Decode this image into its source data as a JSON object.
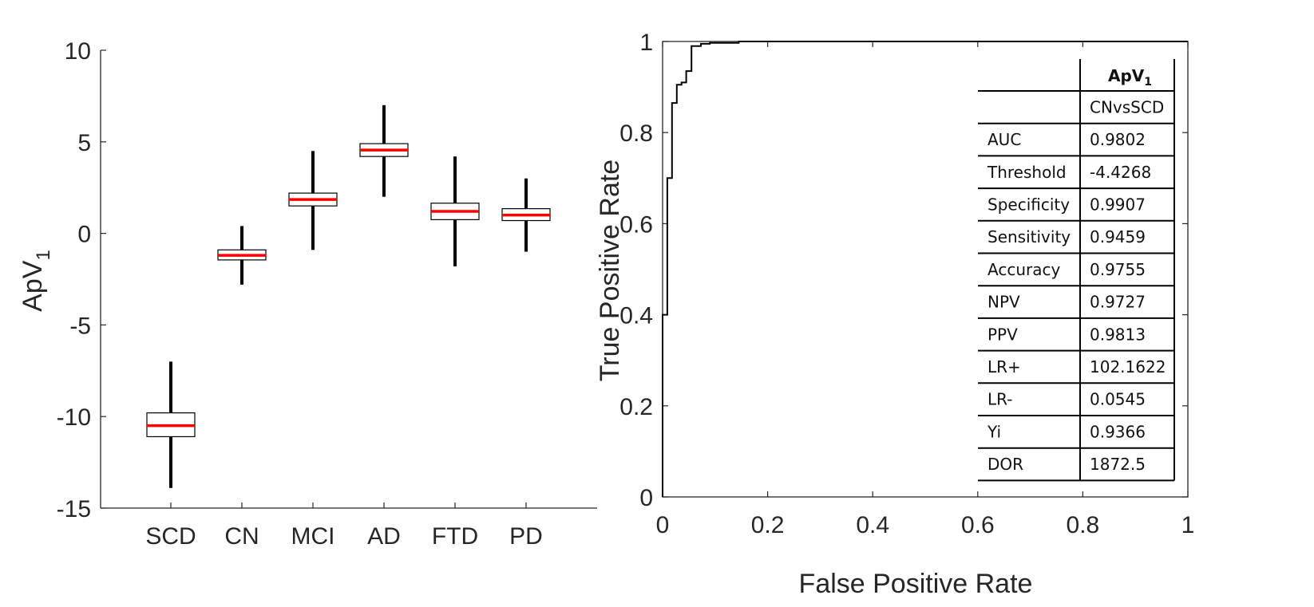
{
  "chart_data": [
    {
      "type": "box",
      "ylabel": "ApV",
      "ylabel_subscript": "1",
      "ylim": [
        -15,
        10
      ],
      "yticks": [
        "10",
        "5",
        "0",
        "-5",
        "-10",
        "-15"
      ],
      "ytick_values": [
        10,
        5,
        0,
        -5,
        -10,
        -15
      ],
      "grid": false,
      "median_color": "#ff0000",
      "categories": [
        "SCD",
        "CN",
        "MCI",
        "AD",
        "FTD",
        "PD"
      ],
      "boxes": [
        {
          "category": "SCD",
          "whisker_low": -13.9,
          "q1": -11.1,
          "median": -10.5,
          "q3": -9.8,
          "whisker_high": -7.0
        },
        {
          "category": "CN",
          "whisker_low": -2.8,
          "q1": -1.45,
          "median": -1.2,
          "q3": -0.9,
          "whisker_high": 0.4
        },
        {
          "category": "MCI",
          "whisker_low": -0.9,
          "q1": 1.5,
          "median": 1.85,
          "q3": 2.2,
          "whisker_high": 4.5
        },
        {
          "category": "AD",
          "whisker_low": 2.0,
          "q1": 4.2,
          "median": 4.55,
          "q3": 4.9,
          "whisker_high": 7.0
        },
        {
          "category": "FTD",
          "whisker_low": -1.8,
          "q1": 0.75,
          "median": 1.2,
          "q3": 1.65,
          "whisker_high": 4.2
        },
        {
          "category": "PD",
          "whisker_low": -1.0,
          "q1": 0.7,
          "median": 1.0,
          "q3": 1.35,
          "whisker_high": 3.0
        }
      ]
    },
    {
      "type": "line",
      "xlabel": "False Positive Rate",
      "ylabel": "True Positive Rate",
      "xlim": [
        0,
        1
      ],
      "ylim": [
        0,
        1
      ],
      "xticks": [
        "0",
        "0.2",
        "0.4",
        "0.6",
        "0.8",
        "1"
      ],
      "xtick_values": [
        0,
        0.2,
        0.4,
        0.6,
        0.8,
        1
      ],
      "yticks": [
        "0",
        "0.2",
        "0.4",
        "0.6",
        "0.8",
        "1"
      ],
      "ytick_values": [
        0,
        0.2,
        0.4,
        0.6,
        0.8,
        1
      ],
      "grid": false,
      "series": [
        {
          "x": [
            0,
            0,
            0.009,
            0.009,
            0.018,
            0.018,
            0.027,
            0.027,
            0.036,
            0.036,
            0.045,
            0.045,
            0.055,
            0.055,
            0.073,
            0.073,
            0.09,
            0.09,
            0.145,
            0.145,
            1
          ],
          "y": [
            0,
            0.4,
            0.4,
            0.7,
            0.7,
            0.865,
            0.865,
            0.905,
            0.905,
            0.91,
            0.91,
            0.935,
            0.935,
            0.99,
            0.99,
            0.995,
            0.995,
            0.997,
            0.997,
            1,
            1
          ]
        }
      ],
      "table": {
        "header": {
          "col1": "",
          "col2_main": "ApV",
          "col2_sub": "1"
        },
        "subheader": {
          "col1": "",
          "col2": "CNvsSCD"
        },
        "rows": [
          {
            "label": "AUC",
            "value": "0.9802"
          },
          {
            "label": "Threshold",
            "value": "-4.4268"
          },
          {
            "label": "Specificity",
            "value": "0.9907"
          },
          {
            "label": "Sensitivity",
            "value": "0.9459"
          },
          {
            "label": "Accuracy",
            "value": "0.9755"
          },
          {
            "label": "NPV",
            "value": "0.9727"
          },
          {
            "label": "PPV",
            "value": "0.9813"
          },
          {
            "label": "LR+",
            "value": "102.1622"
          },
          {
            "label": "LR-",
            "value": "0.0545"
          },
          {
            "label": "Yi",
            "value": "0.9366"
          },
          {
            "label": "DOR",
            "value": "1872.5"
          }
        ]
      }
    }
  ]
}
